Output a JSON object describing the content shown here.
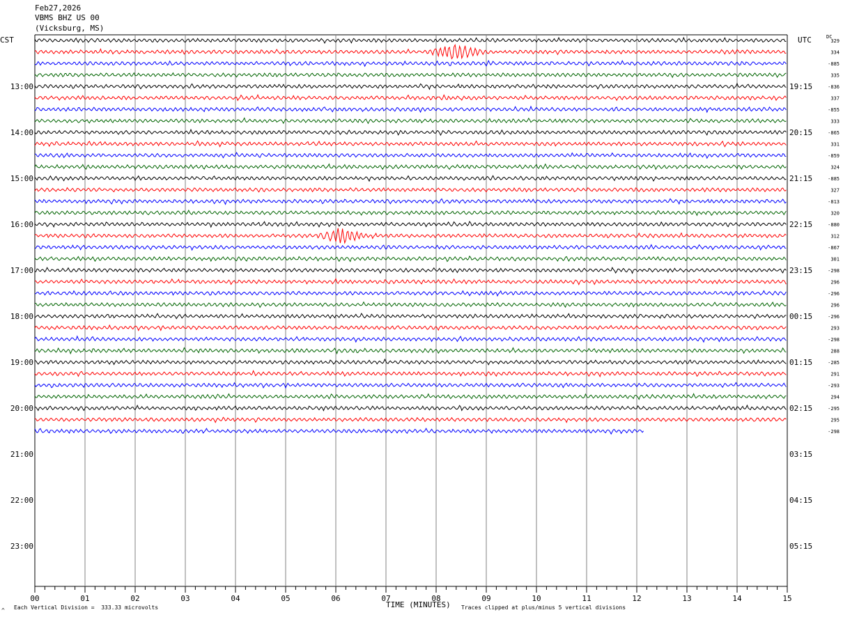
{
  "header": {
    "date": "Feb27,2026",
    "station": "VBMS BHZ US 00",
    "location": "(Vicksburg, MS)"
  },
  "left_tz": "CST",
  "right_tz": "UTC",
  "dc_label": "DC",
  "footer": {
    "scale_note": "Each Vertical Division =  333.33 microvolts",
    "clip_note": "Traces clipped at plus/minus 5 vertical divisions",
    "corner_mark": "^"
  },
  "colors": {
    "trace_cycle": [
      "#000000",
      "#ff0000",
      "#0000ff",
      "#006400"
    ],
    "grid": "#808080"
  },
  "chart_data": {
    "type": "line",
    "title": "VBMS BHZ US 00",
    "xlabel": "TIME (MINUTES)",
    "x_range": [
      0,
      15
    ],
    "x_ticks": [
      "00",
      "01",
      "02",
      "03",
      "04",
      "05",
      "06",
      "07",
      "08",
      "09",
      "10",
      "11",
      "12",
      "13",
      "14",
      "15"
    ],
    "left_hour_labels": [
      "13:00",
      "14:00",
      "15:00",
      "16:00",
      "17:00",
      "18:00",
      "19:00",
      "20:00",
      "21:00",
      "22:00",
      "23:00"
    ],
    "right_hour_labels": [
      "19:15",
      "20:15",
      "21:15",
      "22:15",
      "23:15",
      "00:15",
      "01:15",
      "02:15",
      "03:15",
      "04:15",
      "05:15"
    ],
    "rows_per_hour": 4,
    "total_rows": 48,
    "trace_count": 35,
    "last_trace_end_minute": 12.15,
    "dc_offsets": [
      "329",
      "334",
      "-885",
      "335",
      "-836",
      "337",
      "-855",
      "333",
      "-865",
      "331",
      "-859",
      "324",
      "-885",
      "327",
      "-813",
      "320",
      "-880",
      "312",
      "-867",
      "301",
      "-298",
      "296",
      "-296",
      "296",
      "-296",
      "293",
      "-298",
      "288",
      "-285",
      "291",
      "-293",
      "294",
      "-295",
      "295",
      "-298"
    ],
    "events": [
      {
        "row": 1,
        "start_minute": 7.8,
        "end_minute": 9.0,
        "amplitude": "high"
      },
      {
        "row": 17,
        "start_minute": 5.6,
        "end_minute": 6.6,
        "amplitude": "high"
      }
    ]
  }
}
